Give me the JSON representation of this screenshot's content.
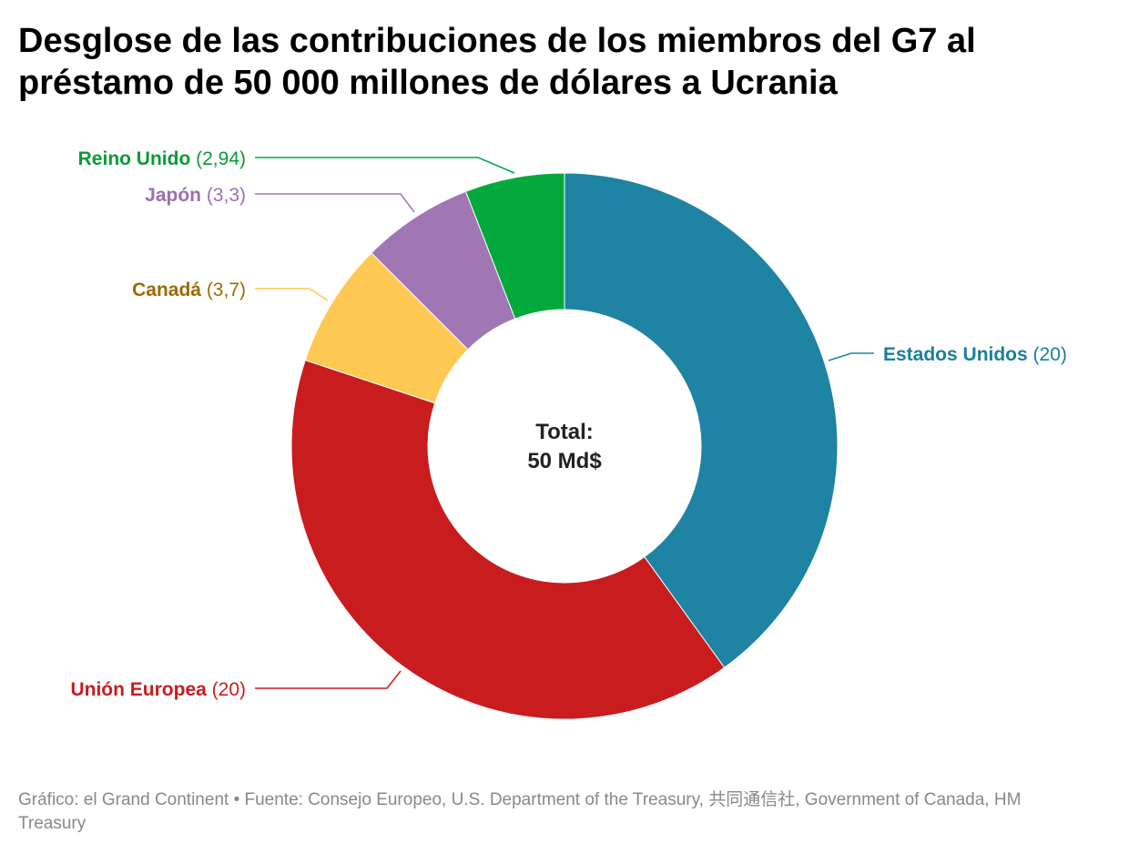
{
  "chart_data": {
    "type": "pie",
    "variant": "donut",
    "title": "Desglose de las contribuciones de los miembros del G7 al préstamo de 50 000 millones de dólares a Ucrania",
    "center_label": [
      "Total:",
      "50 Md$"
    ],
    "slices": [
      {
        "name": "Estados Unidos",
        "value": 20,
        "value_label": "(20)",
        "color": "#1f83a3",
        "label_color": "#1c7e9c"
      },
      {
        "name": "Unión Europea",
        "value": 20,
        "value_label": "(20)",
        "color": "#c81c1e",
        "label_color": "#c81c1e"
      },
      {
        "name": "Canadá",
        "value": 3.7,
        "value_label": "(3,7)",
        "color": "#fec952",
        "label_color": "#9a6c00"
      },
      {
        "name": "Japón",
        "value": 3.3,
        "value_label": "(3,3)",
        "color": "#a076b5",
        "label_color": "#9a70b0"
      },
      {
        "name": "Reino Unido",
        "value": 2.94,
        "value_label": "(2,94)",
        "color": "#03a93b",
        "label_color": "#0a9a38"
      }
    ]
  },
  "footer": "Gráfico: el Grand Continent • Fuente: Consejo Europeo, U.S. Department of the Treasury, 共同通信社, Government of Canada, HM Treasury"
}
